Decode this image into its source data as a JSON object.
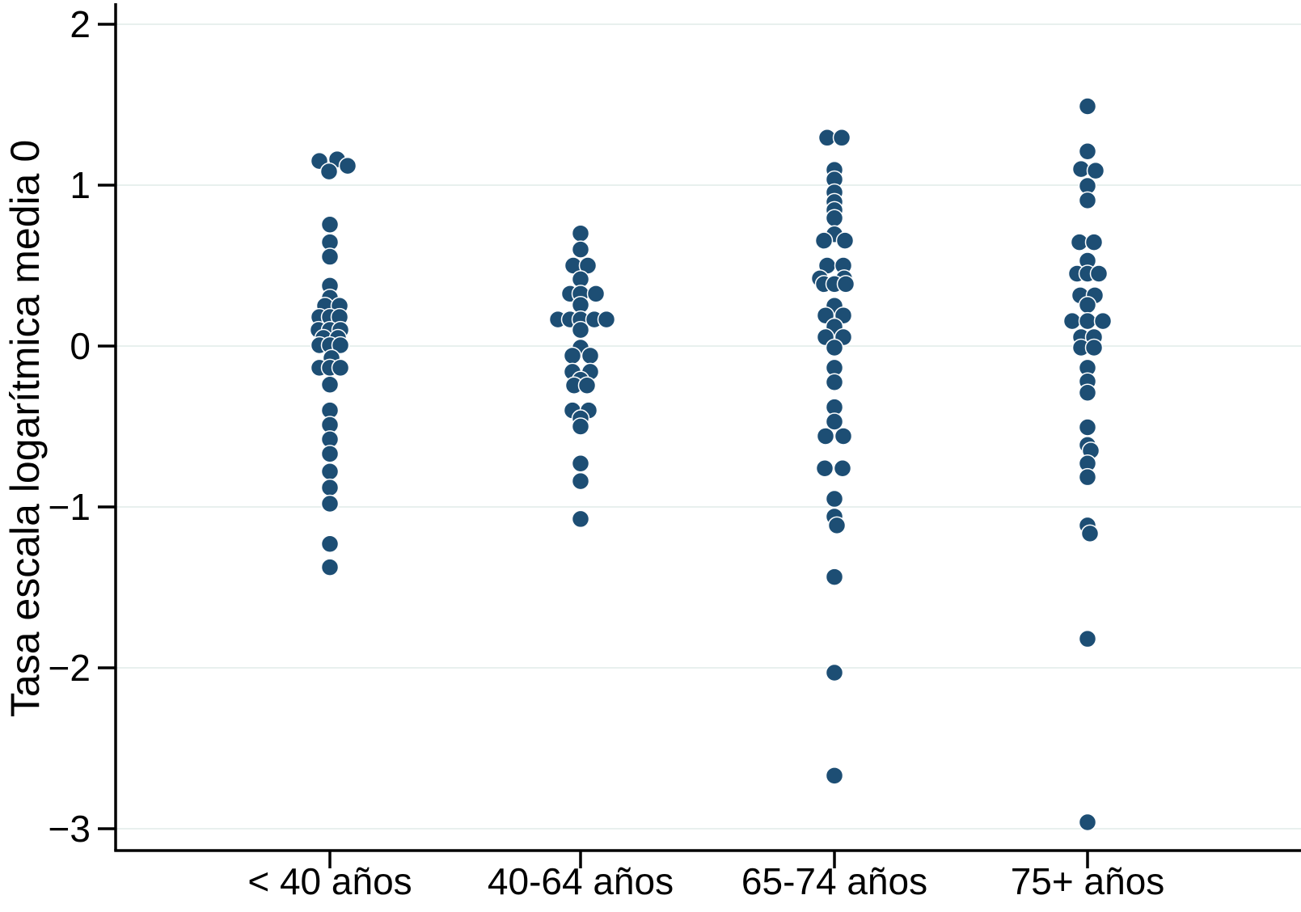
{
  "figure": {
    "background": "#ffffff",
    "dot_color": "#1d4e74",
    "dot_halo_color": "#ffffff",
    "axis_color": "#000000",
    "gridline_color": "#e8f0ee"
  },
  "chart_data": {
    "type": "scatter",
    "subtype": "strip-plot-dot-column",
    "title": "",
    "xlabel": "",
    "ylabel": "Tasa escala logarítmica media 0",
    "ylim": [
      -3.3,
      2.1
    ],
    "grid": "horizontal gridlines at integer y values",
    "legend_position": "none",
    "y_ticks": [
      2,
      1,
      0,
      -1,
      -2,
      -3
    ],
    "y_tick_labels": [
      "2",
      "1",
      "0",
      "−1",
      "−2",
      "−3"
    ],
    "categories": [
      "< 40 años",
      "40-64 años",
      "65-74 años",
      "75+ años"
    ],
    "series": [
      {
        "name": "< 40 años",
        "points_value_dxpx": [
          [
            1.15,
            -13
          ],
          [
            1.16,
            9
          ],
          [
            1.12,
            22
          ],
          [
            1.085,
            -1
          ],
          [
            0.755,
            0
          ],
          [
            0.645,
            0
          ],
          [
            0.555,
            0
          ],
          [
            0.375,
            0
          ],
          [
            0.3,
            0
          ],
          [
            0.25,
            -6
          ],
          [
            0.25,
            12
          ],
          [
            0.18,
            -13
          ],
          [
            0.18,
            0
          ],
          [
            0.18,
            12
          ],
          [
            0.1,
            -14
          ],
          [
            0.1,
            0
          ],
          [
            0.1,
            13
          ],
          [
            0.05,
            -8
          ],
          [
            0.05,
            10
          ],
          [
            0.005,
            -13
          ],
          [
            0.005,
            0
          ],
          [
            0.005,
            13
          ],
          [
            -0.075,
            2
          ],
          [
            -0.135,
            -13
          ],
          [
            -0.135,
            0
          ],
          [
            -0.135,
            13
          ],
          [
            -0.24,
            0
          ],
          [
            -0.4,
            0
          ],
          [
            -0.49,
            0
          ],
          [
            -0.58,
            0
          ],
          [
            -0.67,
            0
          ],
          [
            -0.78,
            0
          ],
          [
            -0.88,
            0
          ],
          [
            -0.98,
            0
          ],
          [
            -1.23,
            0
          ],
          [
            -1.375,
            0
          ]
        ]
      },
      {
        "name": "40-64 años",
        "points_value_dxpx": [
          [
            0.7,
            0
          ],
          [
            0.6,
            0
          ],
          [
            0.5,
            -9
          ],
          [
            0.5,
            9
          ],
          [
            0.415,
            0
          ],
          [
            0.325,
            -13
          ],
          [
            0.325,
            0
          ],
          [
            0.325,
            19
          ],
          [
            0.255,
            0
          ],
          [
            0.165,
            -28
          ],
          [
            0.165,
            -13
          ],
          [
            0.165,
            0
          ],
          [
            0.165,
            17
          ],
          [
            0.165,
            32
          ],
          [
            0.1,
            0
          ],
          [
            -0.01,
            0
          ],
          [
            -0.06,
            -10
          ],
          [
            -0.06,
            12
          ],
          [
            -0.16,
            -10
          ],
          [
            -0.16,
            12
          ],
          [
            -0.21,
            0
          ],
          [
            -0.245,
            -8
          ],
          [
            -0.245,
            8
          ],
          [
            -0.4,
            -10
          ],
          [
            -0.4,
            10
          ],
          [
            -0.45,
            0
          ],
          [
            -0.5,
            0
          ],
          [
            -0.73,
            0
          ],
          [
            -0.84,
            0
          ],
          [
            -1.075,
            0
          ]
        ]
      },
      {
        "name": "65-74 años",
        "points_value_dxpx": [
          [
            1.295,
            -9
          ],
          [
            1.295,
            9
          ],
          [
            1.095,
            0
          ],
          [
            1.035,
            0
          ],
          [
            0.955,
            0
          ],
          [
            0.895,
            0
          ],
          [
            0.845,
            0
          ],
          [
            0.795,
            0
          ],
          [
            0.695,
            0
          ],
          [
            0.655,
            -13
          ],
          [
            0.655,
            13
          ],
          [
            0.5,
            -9
          ],
          [
            0.5,
            11
          ],
          [
            0.42,
            -18
          ],
          [
            0.42,
            12
          ],
          [
            0.385,
            -13
          ],
          [
            0.385,
            0
          ],
          [
            0.385,
            14
          ],
          [
            0.25,
            0
          ],
          [
            0.19,
            -11
          ],
          [
            0.19,
            11
          ],
          [
            0.12,
            0
          ],
          [
            0.055,
            -11
          ],
          [
            0.055,
            11
          ],
          [
            -0.01,
            0
          ],
          [
            -0.135,
            0
          ],
          [
            -0.225,
            0
          ],
          [
            -0.38,
            0
          ],
          [
            -0.47,
            0
          ],
          [
            -0.56,
            -11
          ],
          [
            -0.56,
            11
          ],
          [
            -0.76,
            -12
          ],
          [
            -0.76,
            10
          ],
          [
            -0.95,
            0
          ],
          [
            -1.06,
            0
          ],
          [
            -1.115,
            3
          ],
          [
            -1.435,
            0
          ],
          [
            -2.03,
            0
          ],
          [
            -2.67,
            0
          ]
        ]
      },
      {
        "name": "75+ años",
        "points_value_dxpx": [
          [
            1.49,
            0
          ],
          [
            1.21,
            0
          ],
          [
            1.1,
            -8
          ],
          [
            1.09,
            10
          ],
          [
            0.995,
            0
          ],
          [
            0.905,
            0
          ],
          [
            0.645,
            -10
          ],
          [
            0.645,
            8
          ],
          [
            0.53,
            0
          ],
          [
            0.45,
            -13
          ],
          [
            0.45,
            0
          ],
          [
            0.45,
            14
          ],
          [
            0.315,
            -9
          ],
          [
            0.315,
            9
          ],
          [
            0.255,
            0
          ],
          [
            0.155,
            -19
          ],
          [
            0.155,
            0
          ],
          [
            0.155,
            19
          ],
          [
            0.055,
            -8
          ],
          [
            0.055,
            8
          ],
          [
            -0.01,
            -8
          ],
          [
            -0.01,
            8
          ],
          [
            -0.135,
            0
          ],
          [
            -0.22,
            0
          ],
          [
            -0.29,
            0
          ],
          [
            -0.505,
            0
          ],
          [
            -0.615,
            0
          ],
          [
            -0.65,
            4
          ],
          [
            -0.73,
            0
          ],
          [
            -0.815,
            0
          ],
          [
            -1.115,
            0
          ],
          [
            -1.165,
            3
          ],
          [
            -1.82,
            0
          ],
          [
            -2.96,
            0
          ]
        ]
      }
    ]
  }
}
